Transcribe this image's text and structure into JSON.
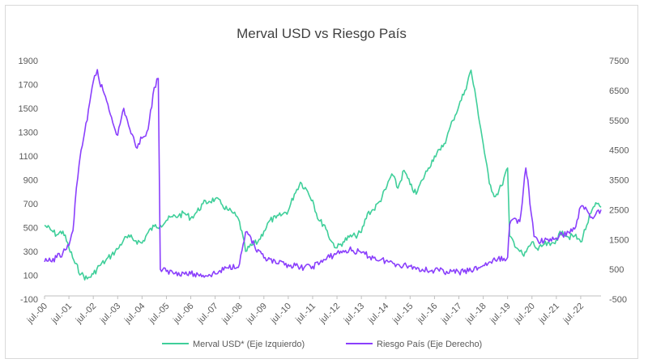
{
  "chart_data": {
    "type": "line",
    "title": "Merval USD vs Riesgo País",
    "x_tick_labels": [
      "jul.-00",
      "jul.-01",
      "jul.-02",
      "jul.-03",
      "jul.-04",
      "jul.-05",
      "jul.-06",
      "jul.-07",
      "jul.-08",
      "jul.-09",
      "jul.-10",
      "jul.-11",
      "jul.-12",
      "jul.-13",
      "jul.-14",
      "jul.-15",
      "jul.-16",
      "jul.-17",
      "jul.-18",
      "jul.-19",
      "jul.-20",
      "jul.-21",
      "jul.-22"
    ],
    "y_left": {
      "ylim": [
        -100,
        1900
      ],
      "ticks": [
        -100,
        100,
        300,
        500,
        700,
        900,
        1100,
        1300,
        1500,
        1700,
        1900
      ]
    },
    "y_right": {
      "ylim": [
        -500,
        7500
      ],
      "ticks": [
        -500,
        500,
        1500,
        2500,
        3500,
        4500,
        5500,
        6500,
        7500
      ]
    },
    "grid": false,
    "legend_position": "bottom",
    "series": [
      {
        "name": "Merval USD* (Eje Izquierdo)",
        "axis": "left",
        "color": "#3fcf9a",
        "points": [
          [
            "jul.-00",
            520
          ],
          [
            "oct.-00",
            480
          ],
          [
            "ene.-01",
            440
          ],
          [
            "abr.-01",
            470
          ],
          [
            "jul.-01",
            330
          ],
          [
            "oct.-01",
            200
          ],
          [
            "ene.-02",
            110
          ],
          [
            "abr.-02",
            70
          ],
          [
            "jul.-02",
            110
          ],
          [
            "oct.-02",
            180
          ],
          [
            "ene.-03",
            220
          ],
          [
            "abr.-03",
            270
          ],
          [
            "jul.-03",
            320
          ],
          [
            "oct.-03",
            400
          ],
          [
            "ene.-04",
            420
          ],
          [
            "abr.-04",
            390
          ],
          [
            "jul.-04",
            370
          ],
          [
            "oct.-04",
            460
          ],
          [
            "ene.-05",
            510
          ],
          [
            "abr.-05",
            520
          ],
          [
            "jul.-05",
            560
          ],
          [
            "oct.-05",
            590
          ],
          [
            "ene.-06",
            600
          ],
          [
            "abr.-06",
            620
          ],
          [
            "jul.-06",
            580
          ],
          [
            "oct.-06",
            630
          ],
          [
            "ene.-07",
            700
          ],
          [
            "abr.-07",
            720
          ],
          [
            "jul.-07",
            740
          ],
          [
            "oct.-07",
            700
          ],
          [
            "ene.-08",
            650
          ],
          [
            "abr.-08",
            620
          ],
          [
            "jul.-08",
            550
          ],
          [
            "oct.-08",
            300
          ],
          [
            "ene.-09",
            350
          ],
          [
            "abr.-09",
            380
          ],
          [
            "jul.-09",
            470
          ],
          [
            "oct.-09",
            560
          ],
          [
            "ene.-10",
            580
          ],
          [
            "abr.-10",
            610
          ],
          [
            "jul.-10",
            640
          ],
          [
            "oct.-10",
            780
          ],
          [
            "ene.-11",
            880
          ],
          [
            "abr.-11",
            820
          ],
          [
            "jul.-11",
            730
          ],
          [
            "oct.-11",
            560
          ],
          [
            "ene.-12",
            520
          ],
          [
            "abr.-12",
            390
          ],
          [
            "jul.-12",
            330
          ],
          [
            "oct.-12",
            380
          ],
          [
            "ene.-13",
            420
          ],
          [
            "abr.-13",
            430
          ],
          [
            "jul.-13",
            460
          ],
          [
            "oct.-13",
            620
          ],
          [
            "ene.-14",
            650
          ],
          [
            "abr.-14",
            720
          ],
          [
            "jul.-14",
            820
          ],
          [
            "oct.-14",
            950
          ],
          [
            "ene.-15",
            830
          ],
          [
            "abr.-15",
            980
          ],
          [
            "jul.-15",
            860
          ],
          [
            "oct.-15",
            780
          ],
          [
            "ene.-16",
            900
          ],
          [
            "abr.-16",
            1000
          ],
          [
            "jul.-16",
            1100
          ],
          [
            "oct.-16",
            1150
          ],
          [
            "ene.-17",
            1250
          ],
          [
            "abr.-17",
            1400
          ],
          [
            "jul.-17",
            1520
          ],
          [
            "oct.-17",
            1650
          ],
          [
            "ene.-18",
            1820
          ],
          [
            "abr.-18",
            1520
          ],
          [
            "jul.-18",
            1200
          ],
          [
            "oct.-18",
            870
          ],
          [
            "ene.-19",
            760
          ],
          [
            "abr.-19",
            850
          ],
          [
            "jul.-19",
            1000
          ],
          [
            "ago.-19",
            430
          ],
          [
            "oct.-19",
            380
          ],
          [
            "ene.-20",
            300
          ],
          [
            "mar.-20",
            260
          ],
          [
            "jul.-20",
            380
          ],
          [
            "oct.-20",
            310
          ],
          [
            "ene.-21",
            360
          ],
          [
            "abr.-21",
            350
          ],
          [
            "jul.-21",
            400
          ],
          [
            "oct.-21",
            470
          ],
          [
            "ene.-22",
            420
          ],
          [
            "abr.-22",
            430
          ],
          [
            "jul.-22",
            380
          ],
          [
            "oct.-22",
            520
          ],
          [
            "dic.-22",
            620
          ],
          [
            "mar.-23",
            700
          ],
          [
            "may.-23",
            670
          ]
        ]
      },
      {
        "name": "Riesgo País (Eje Derecho)",
        "axis": "right",
        "color": "#8a3ffc",
        "points": [
          [
            "jul.-00",
            750
          ],
          [
            "oct.-00",
            780
          ],
          [
            "ene.-01",
            900
          ],
          [
            "abr.-01",
            1050
          ],
          [
            "jul.-01",
            1300
          ],
          [
            "sep.-01",
            1800
          ],
          [
            "oct.-01",
            2700
          ],
          [
            "dic.-01",
            4000
          ],
          [
            "ene.-02",
            4500
          ],
          [
            "abr.-02",
            5500
          ],
          [
            "jul.-02",
            6800
          ],
          [
            "sep.-02",
            7200
          ],
          [
            "oct.-02",
            6800
          ],
          [
            "ene.-03",
            6300
          ],
          [
            "abr.-03",
            5600
          ],
          [
            "jul.-03",
            5000
          ],
          [
            "oct.-03",
            5900
          ],
          [
            "ene.-04",
            5200
          ],
          [
            "abr.-04",
            4600
          ],
          [
            "jul.-04",
            4900
          ],
          [
            "oct.-04",
            5200
          ],
          [
            "ene.-05",
            6600
          ],
          [
            "mar.-05",
            6900
          ],
          [
            "abr.-05",
            500
          ],
          [
            "jul.-05",
            430
          ],
          [
            "ene.-06",
            390
          ],
          [
            "jul.-06",
            340
          ],
          [
            "ene.-07",
            300
          ],
          [
            "jul.-07",
            350
          ],
          [
            "ene.-08",
            550
          ],
          [
            "jul.-08",
            680
          ],
          [
            "oct.-08",
            1750
          ],
          [
            "dic.-08",
            1650
          ],
          [
            "mar.-09",
            1150
          ],
          [
            "jul.-09",
            880
          ],
          [
            "ene.-10",
            700
          ],
          [
            "jul.-10",
            660
          ],
          [
            "ene.-11",
            560
          ],
          [
            "jul.-11",
            600
          ],
          [
            "ene.-12",
            820
          ],
          [
            "jul.-12",
            1050
          ],
          [
            "ene.-13",
            1150
          ],
          [
            "jul.-13",
            1050
          ],
          [
            "ene.-14",
            880
          ],
          [
            "jul.-14",
            780
          ],
          [
            "ene.-15",
            670
          ],
          [
            "jul.-15",
            600
          ],
          [
            "ene.-16",
            500
          ],
          [
            "jul.-16",
            460
          ],
          [
            "ene.-17",
            430
          ],
          [
            "jul.-17",
            400
          ],
          [
            "ene.-18",
            450
          ],
          [
            "jul.-18",
            630
          ],
          [
            "ene.-19",
            800
          ],
          [
            "jul.-19",
            900
          ],
          [
            "ago.-19",
            2000
          ],
          [
            "oct.-19",
            2200
          ],
          [
            "ene.-20",
            2100
          ],
          [
            "abr.-20",
            3900
          ],
          [
            "may.-20",
            3500
          ],
          [
            "jun.-20",
            2700
          ],
          [
            "ago.-20",
            1600
          ],
          [
            "oct.-20",
            1450
          ],
          [
            "ene.-21",
            1450
          ],
          [
            "jul.-21",
            1550
          ],
          [
            "ene.-22",
            1750
          ],
          [
            "abr.-22",
            1850
          ],
          [
            "jul.-22",
            2600
          ],
          [
            "oct.-22",
            2500
          ],
          [
            "ene.-23",
            2200
          ],
          [
            "mar.-23",
            2450
          ],
          [
            "may.-23",
            2500
          ]
        ]
      }
    ]
  }
}
